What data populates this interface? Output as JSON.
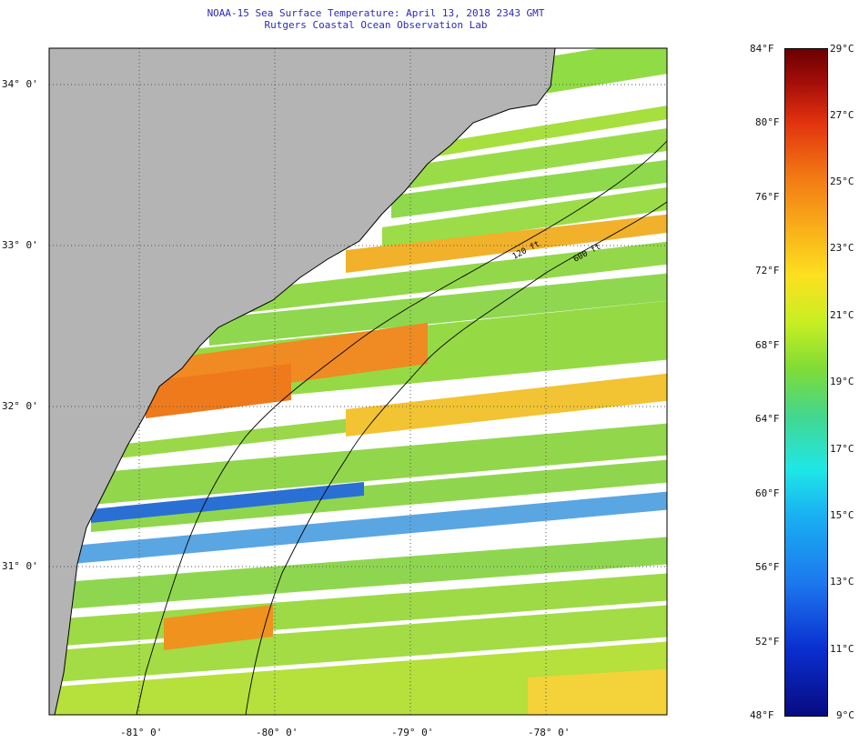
{
  "title": {
    "line1": "NOAA-15 Sea Surface Temperature:  April 13, 2018 2343 GMT",
    "line2": "Rutgers Coastal Ocean Observation Lab"
  },
  "axes": {
    "lat_labels": [
      "34° 0'",
      "33° 0'",
      "32° 0'",
      "31° 0'"
    ],
    "lon_labels": [
      "-81° 0'",
      "-80° 0'",
      "-79° 0'",
      "-78° 0'"
    ]
  },
  "contours": {
    "shelf_120ft": "120 ft",
    "shelf_600ft": "600 ft"
  },
  "colorbar": {
    "fahrenheit": [
      "84°F",
      "80°F",
      "76°F",
      "72°F",
      "68°F",
      "64°F",
      "60°F",
      "56°F",
      "52°F",
      "48°F"
    ],
    "celsius": [
      "29°C",
      "27°C",
      "25°C",
      "23°C",
      "21°C",
      "19°C",
      "17°C",
      "15°C",
      "13°C",
      "11°C",
      "9°C"
    ]
  },
  "colors": {
    "land": "#b4b4b4",
    "warm": "#f28a1e",
    "mid": "#86dd48",
    "cool": "#2a8fe0",
    "cloud": "#ffffff"
  }
}
